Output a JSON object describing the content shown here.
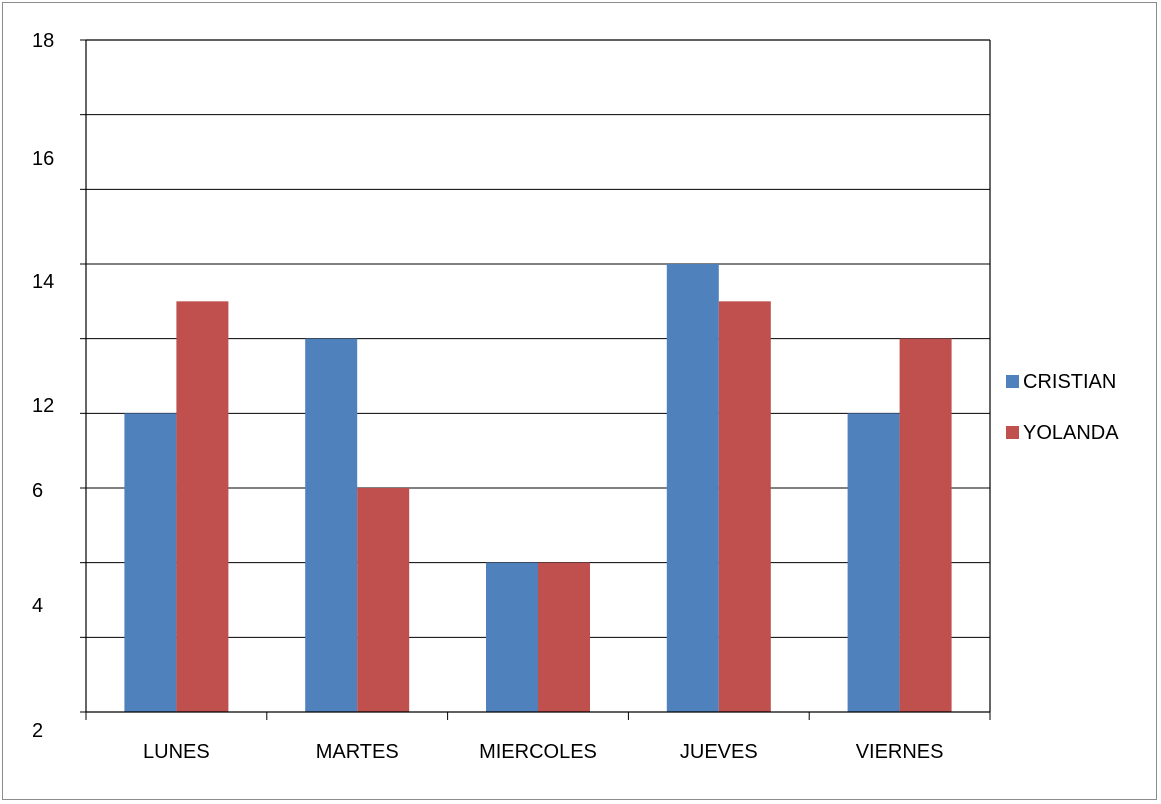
{
  "chart_data": {
    "type": "bar",
    "categories": [
      "LUNES",
      "MARTES",
      "MIERCOLES",
      "JUEVES",
      "VIERNES"
    ],
    "series": [
      {
        "name": "CRISTIAN",
        "color": "#4f81bd",
        "values": [
          10,
          12,
          6,
          14,
          10
        ]
      },
      {
        "name": "YOLANDA",
        "color": "#c0504d",
        "values": [
          13,
          8,
          6,
          13,
          12
        ]
      }
    ],
    "y_tick_labels": [
      "2",
      "4",
      "6",
      "12",
      "14",
      "16",
      "18"
    ],
    "ylim": [
      2,
      18
    ],
    "ylim_note": "uneven tick labels; bars map linearly to gridlines",
    "grid": true,
    "legend": "right"
  }
}
